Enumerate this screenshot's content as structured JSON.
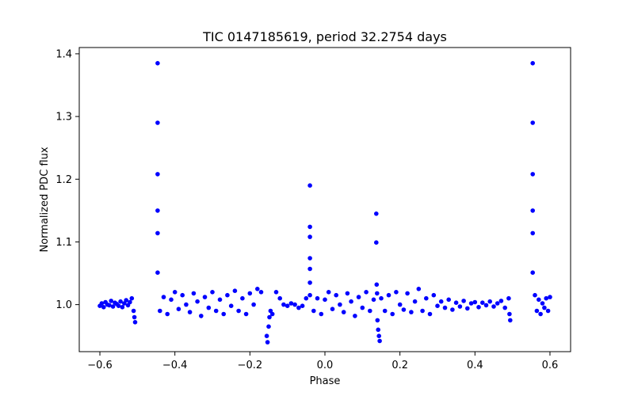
{
  "chart_data": {
    "type": "scatter",
    "title": "TIC 0147185619, period 32.2754 days",
    "xlabel": "Phase",
    "ylabel": "Normalized PDC flux",
    "xlim": [
      -0.655,
      0.655
    ],
    "ylim": [
      0.925,
      1.41
    ],
    "xticks": [
      -0.6,
      -0.4,
      -0.2,
      0.0,
      0.2,
      0.4,
      0.6
    ],
    "xtick_labels": [
      "−0.6",
      "−0.4",
      "−0.2",
      "0.0",
      "0.2",
      "0.4",
      "0.6"
    ],
    "yticks": [
      1.0,
      1.1,
      1.2,
      1.3,
      1.4
    ],
    "ytick_labels": [
      "1.0",
      "1.1",
      "1.2",
      "1.3",
      "1.4"
    ],
    "grid": false,
    "marker_color": "#0000ff",
    "series": [
      {
        "name": "flux",
        "x": [
          -0.6,
          -0.595,
          -0.59,
          -0.585,
          -0.58,
          -0.575,
          -0.57,
          -0.565,
          -0.56,
          -0.555,
          -0.55,
          -0.545,
          -0.54,
          -0.535,
          -0.53,
          -0.525,
          -0.52,
          -0.515,
          -0.51,
          -0.508,
          -0.506,
          -0.446,
          -0.446,
          -0.446,
          -0.446,
          -0.446,
          -0.446,
          -0.44,
          -0.43,
          -0.42,
          -0.41,
          -0.4,
          -0.39,
          -0.38,
          -0.37,
          -0.36,
          -0.35,
          -0.34,
          -0.33,
          -0.32,
          -0.31,
          -0.3,
          -0.29,
          -0.28,
          -0.27,
          -0.26,
          -0.25,
          -0.24,
          -0.23,
          -0.22,
          -0.21,
          -0.2,
          -0.19,
          -0.18,
          -0.17,
          -0.155,
          -0.153,
          -0.15,
          -0.148,
          -0.145,
          -0.14,
          -0.13,
          -0.12,
          -0.11,
          -0.1,
          -0.09,
          -0.08,
          -0.07,
          -0.06,
          -0.05,
          -0.04,
          -0.04,
          -0.04,
          -0.04,
          -0.04,
          -0.04,
          -0.04,
          -0.03,
          -0.02,
          -0.01,
          0.0,
          0.01,
          0.02,
          0.03,
          0.04,
          0.05,
          0.06,
          0.07,
          0.08,
          0.09,
          0.1,
          0.11,
          0.12,
          0.13,
          0.137,
          0.137,
          0.138,
          0.139,
          0.14,
          0.142,
          0.144,
          0.146,
          0.15,
          0.16,
          0.17,
          0.18,
          0.19,
          0.2,
          0.21,
          0.22,
          0.23,
          0.24,
          0.25,
          0.26,
          0.27,
          0.28,
          0.29,
          0.3,
          0.31,
          0.32,
          0.33,
          0.34,
          0.35,
          0.36,
          0.37,
          0.38,
          0.39,
          0.4,
          0.41,
          0.42,
          0.43,
          0.44,
          0.45,
          0.46,
          0.47,
          0.48,
          0.49,
          0.492,
          0.494,
          0.554,
          0.554,
          0.554,
          0.554,
          0.554,
          0.554,
          0.56,
          0.565,
          0.57,
          0.575,
          0.58,
          0.585,
          0.59,
          0.595,
          0.6
        ],
        "y": [
          0.998,
          1.002,
          0.996,
          1.004,
          1.0,
          0.999,
          1.006,
          0.997,
          1.003,
          1.001,
          0.998,
          1.005,
          0.996,
          1.002,
          1.007,
          0.999,
          1.004,
          1.01,
          0.99,
          0.98,
          0.972,
          1.385,
          1.29,
          1.208,
          1.15,
          1.114,
          1.051,
          0.99,
          1.012,
          0.985,
          1.008,
          1.02,
          0.993,
          1.015,
          1.0,
          0.988,
          1.018,
          1.005,
          0.982,
          1.012,
          0.995,
          1.02,
          0.99,
          1.008,
          0.985,
          1.015,
          0.998,
          1.022,
          0.99,
          1.01,
          0.985,
          1.018,
          1.0,
          1.025,
          1.02,
          0.95,
          0.94,
          0.965,
          0.98,
          0.99,
          0.985,
          1.02,
          1.01,
          1.0,
          0.998,
          1.002,
          1.0,
          0.995,
          0.998,
          1.01,
          1.19,
          1.124,
          1.108,
          1.074,
          1.057,
          1.035,
          1.015,
          0.99,
          1.01,
          0.985,
          1.008,
          1.02,
          0.993,
          1.015,
          1.0,
          0.988,
          1.018,
          1.005,
          0.982,
          1.012,
          0.995,
          1.02,
          0.99,
          1.008,
          1.145,
          1.099,
          1.032,
          1.018,
          0.975,
          0.96,
          0.95,
          0.942,
          1.01,
          0.99,
          1.015,
          0.985,
          1.02,
          1.0,
          0.992,
          1.018,
          0.988,
          1.005,
          1.025,
          0.99,
          1.01,
          0.985,
          1.015,
          0.998,
          1.005,
          0.995,
          1.008,
          0.992,
          1.003,
          0.997,
          1.006,
          0.994,
          1.002,
          1.004,
          0.996,
          1.003,
          0.999,
          1.005,
          0.997,
          1.002,
          1.006,
          0.995,
          1.01,
          0.985,
          0.975,
          1.385,
          1.29,
          1.208,
          1.15,
          1.114,
          1.051,
          1.015,
          0.99,
          1.008,
          0.985,
          1.002,
          0.995,
          1.01,
          0.99,
          1.012
        ]
      }
    ]
  }
}
